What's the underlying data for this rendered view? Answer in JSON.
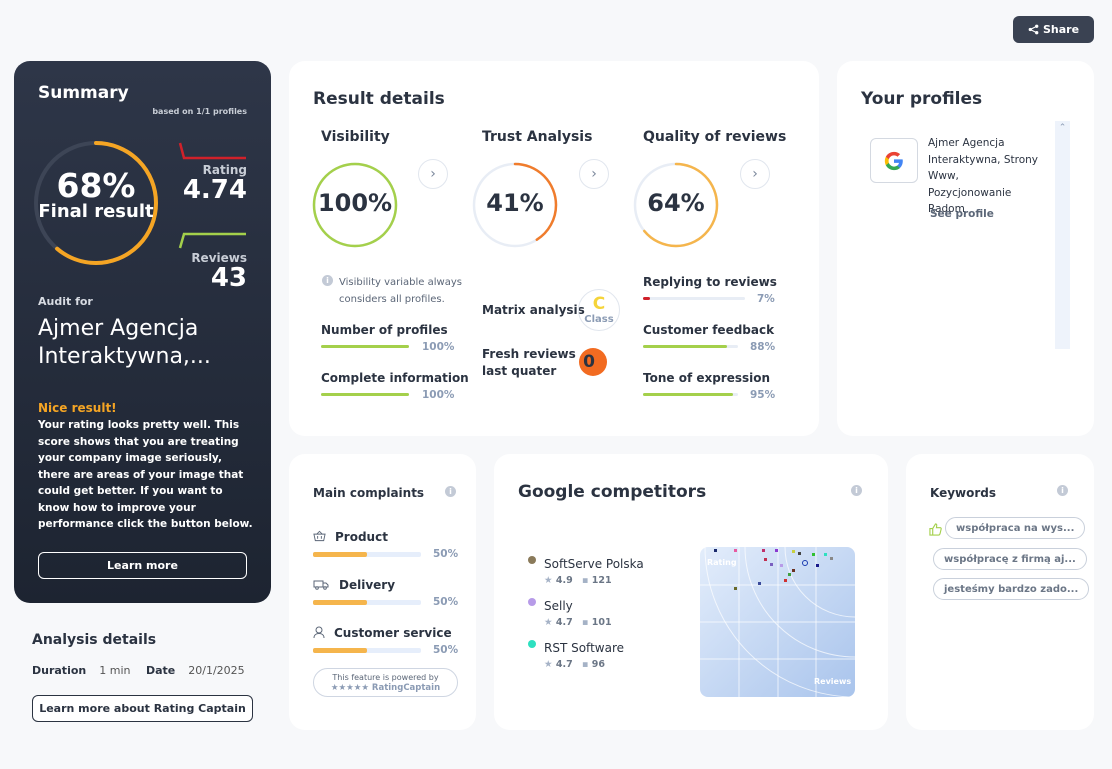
{
  "share": {
    "label": "Share",
    "icon": "share-icon"
  },
  "summary": {
    "title": "Summary",
    "based_on": "based on 1/1 profiles",
    "final_percent": "68%",
    "final_label": "Final result",
    "final_value": 0.68,
    "rating_label": "Rating",
    "rating_value": "4.74",
    "reviews_label": "Reviews",
    "reviews_value": "43",
    "audit_for_label": "Audit for",
    "audit_name": "Ajmer Agencja Interaktywna,...",
    "nice_title": "Nice result!",
    "nice_text": "Your rating looks pretty well. This score shows that you are treating your company image seriously, there are areas of your image that could get better. If you want to know how to improve your performance click the button below.",
    "learn_more_label": "Learn more",
    "colors": {
      "ring": "#f5a524",
      "rating_accent": "#d0212a",
      "reviews_accent": "#a4d04b"
    }
  },
  "analysis": {
    "title": "Analysis details",
    "duration_label": "Duration",
    "duration_value": "1 min",
    "date_label": "Date",
    "date_value": "20/1/2025",
    "button_label": "Learn more about Rating Captain"
  },
  "result": {
    "title": "Result details",
    "visibility": {
      "title": "Visibility",
      "percent": "100%",
      "value": 1.0,
      "color": "#a4d04b",
      "note": "Visibility variable always considers all profiles.",
      "items": [
        {
          "label": "Number of profiles",
          "percent": "100%",
          "value": 1.0
        },
        {
          "label": "Complete information",
          "percent": "100%",
          "value": 1.0
        }
      ]
    },
    "trust": {
      "title": "Trust Analysis",
      "percent": "41%",
      "value": 0.41,
      "color": "#f07c2c",
      "matrix_label": "Matrix analysis",
      "matrix_class_letter": "C",
      "matrix_class_word": "Class",
      "fresh_label_1": "Fresh reviews",
      "fresh_label_2": "last quater",
      "fresh_value": "0"
    },
    "quality": {
      "title": "Quality of reviews",
      "percent": "64%",
      "value": 0.64,
      "color": "#f5b54c",
      "items": [
        {
          "label": "Replying to reviews",
          "percent": "7%",
          "value": 0.07,
          "color": "#d0212a"
        },
        {
          "label": "Customer feedback",
          "percent": "88%",
          "value": 0.88,
          "color": "#a4d04b"
        },
        {
          "label": "Tone of expression",
          "percent": "95%",
          "value": 0.95,
          "color": "#a4d04b"
        }
      ]
    }
  },
  "profiles": {
    "title": "Your profiles",
    "items": [
      {
        "name": "Ajmer Agencja Interaktywna, Strony Www, Pozycjonowanie Radom",
        "link": "See profile",
        "icon": "google-icon"
      }
    ]
  },
  "complaints": {
    "title": "Main complaints",
    "items": [
      {
        "label": "Product",
        "percent": "50%",
        "value": 0.5,
        "icon": "basket-icon"
      },
      {
        "label": "Delivery",
        "percent": "50%",
        "value": 0.5,
        "icon": "truck-icon"
      },
      {
        "label": "Customer service",
        "percent": "50%",
        "value": 0.5,
        "icon": "person-icon"
      }
    ],
    "powered_1": "This feature is powered by",
    "powered_2": "RatingCaptain"
  },
  "competitors": {
    "title": "Google competitors",
    "items": [
      {
        "name": "SoftServe Polska",
        "rating": "4.9",
        "reviews": "121",
        "color": "#8a7a5a"
      },
      {
        "name": "Selly",
        "rating": "4.7",
        "reviews": "101",
        "color": "#b79be8"
      },
      {
        "name": "RST Software",
        "rating": "4.7",
        "reviews": "96",
        "color": "#2ee0c0"
      }
    ],
    "map_rating_label": "Rating",
    "map_reviews_label": "Reviews"
  },
  "keywords": {
    "title": "Keywords",
    "items": [
      "współpraca na wys...",
      "współpracę z firmą aj...",
      "jesteśmy bardzo zado..."
    ]
  }
}
